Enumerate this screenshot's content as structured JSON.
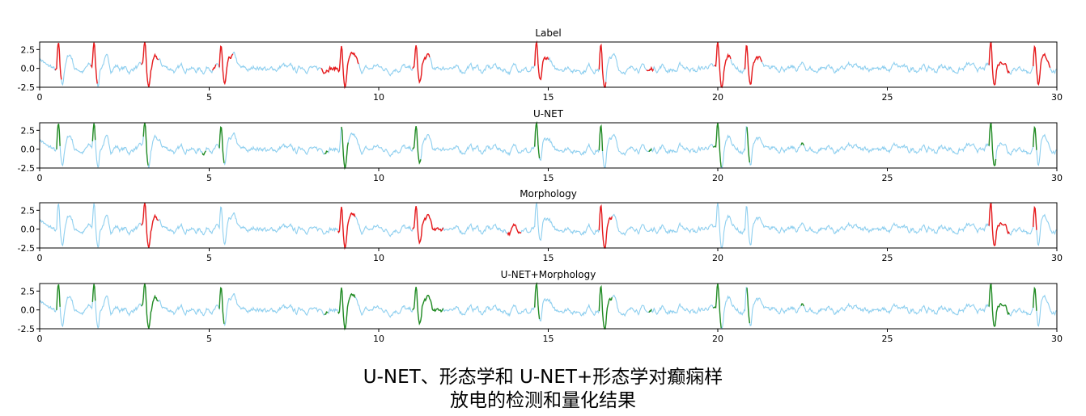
{
  "chart_data": [
    {
      "type": "line",
      "title": "Label",
      "xlim": [
        0,
        30
      ],
      "ylim": [
        -2.5,
        3.5
      ],
      "xticks": [
        "0",
        "5",
        "10",
        "15",
        "20",
        "25",
        "30"
      ],
      "yticks": [
        "2.5",
        "0.0",
        "-2.5"
      ],
      "base_color": "#8ecfef",
      "highlight_color": "#e8191b",
      "highlight_segments": [
        [
          0.45,
          0.65
        ],
        [
          1.5,
          1.7
        ],
        [
          3.0,
          3.5
        ],
        [
          5.1,
          5.2
        ],
        [
          5.3,
          5.7
        ],
        [
          8.3,
          9.4
        ],
        [
          11.0,
          11.5
        ],
        [
          14.6,
          15.0
        ],
        [
          16.5,
          16.7
        ],
        [
          17.9,
          18.1
        ],
        [
          19.9,
          20.4
        ],
        [
          20.8,
          21.3
        ],
        [
          28.0,
          28.6
        ],
        [
          29.3,
          29.8
        ]
      ],
      "spikes": [
        0.55,
        1.6,
        3.1,
        5.35,
        8.9,
        11.1,
        14.65,
        16.55,
        20.0,
        20.85,
        28.05,
        29.35
      ]
    },
    {
      "type": "line",
      "title": "U-NET",
      "xlim": [
        0,
        30
      ],
      "ylim": [
        -2.5,
        3.5
      ],
      "xticks": [
        "0",
        "5",
        "10",
        "15",
        "20",
        "25",
        "30"
      ],
      "yticks": [
        "2.5",
        "0.0",
        "-2.5"
      ],
      "base_color": "#8ecfef",
      "highlight_color": "#228b22",
      "highlight_segments": [
        [
          0.5,
          0.6
        ],
        [
          1.55,
          1.65
        ],
        [
          3.05,
          3.2
        ],
        [
          4.8,
          4.9
        ],
        [
          5.3,
          5.45
        ],
        [
          8.4,
          8.5
        ],
        [
          8.9,
          9.1
        ],
        [
          11.0,
          11.25
        ],
        [
          14.6,
          14.75
        ],
        [
          16.5,
          16.6
        ],
        [
          17.95,
          18.05
        ],
        [
          19.85,
          20.1
        ],
        [
          20.85,
          20.95
        ],
        [
          22.45,
          22.55
        ],
        [
          28.0,
          28.2
        ],
        [
          29.3,
          29.4
        ]
      ],
      "spikes": [
        0.55,
        1.6,
        3.1,
        5.35,
        8.9,
        11.1,
        14.65,
        16.55,
        20.0,
        20.85,
        28.05,
        29.35
      ]
    },
    {
      "type": "line",
      "title": "Morphology",
      "xlim": [
        0,
        30
      ],
      "ylim": [
        -2.5,
        3.5
      ],
      "xticks": [
        "0",
        "5",
        "10",
        "15",
        "20",
        "25",
        "30"
      ],
      "yticks": [
        "2.5",
        "0.0",
        "-2.5"
      ],
      "base_color": "#8ecfef",
      "highlight_color": "#e8191b",
      "highlight_segments": [
        [
          3.0,
          3.5
        ],
        [
          8.8,
          9.3
        ],
        [
          11.0,
          11.9
        ],
        [
          13.8,
          14.2
        ],
        [
          16.5,
          16.9
        ],
        [
          28.0,
          28.6
        ],
        [
          29.3,
          29.4
        ]
      ],
      "spikes": [
        0.55,
        1.6,
        3.1,
        5.35,
        8.9,
        11.1,
        14.65,
        16.55,
        20.0,
        20.85,
        28.05,
        29.35
      ]
    },
    {
      "type": "line",
      "title": "U-NET+Morphology",
      "xlim": [
        0,
        30
      ],
      "ylim": [
        -2.5,
        3.5
      ],
      "xticks": [
        "0",
        "5",
        "10",
        "15",
        "20",
        "25",
        "30"
      ],
      "yticks": [
        "2.5",
        "0.0",
        "-2.5"
      ],
      "base_color": "#8ecfef",
      "highlight_color": "#228b22",
      "highlight_segments": [
        [
          0.5,
          0.6
        ],
        [
          1.55,
          1.65
        ],
        [
          3.0,
          3.5
        ],
        [
          5.3,
          5.45
        ],
        [
          8.4,
          8.5
        ],
        [
          8.8,
          9.3
        ],
        [
          11.0,
          11.9
        ],
        [
          14.6,
          14.75
        ],
        [
          16.5,
          16.9
        ],
        [
          17.95,
          18.05
        ],
        [
          19.85,
          20.1
        ],
        [
          20.85,
          20.95
        ],
        [
          22.45,
          22.55
        ],
        [
          28.0,
          28.6
        ],
        [
          29.3,
          29.4
        ]
      ],
      "spikes": [
        0.55,
        1.6,
        3.1,
        5.35,
        8.9,
        11.1,
        14.65,
        16.55,
        20.0,
        20.85,
        28.05,
        29.35
      ]
    }
  ],
  "caption": {
    "line1": "U-NET、形态学和 U-NET+形态学对癫痫样",
    "line2": "放电的检测和量化结果"
  }
}
